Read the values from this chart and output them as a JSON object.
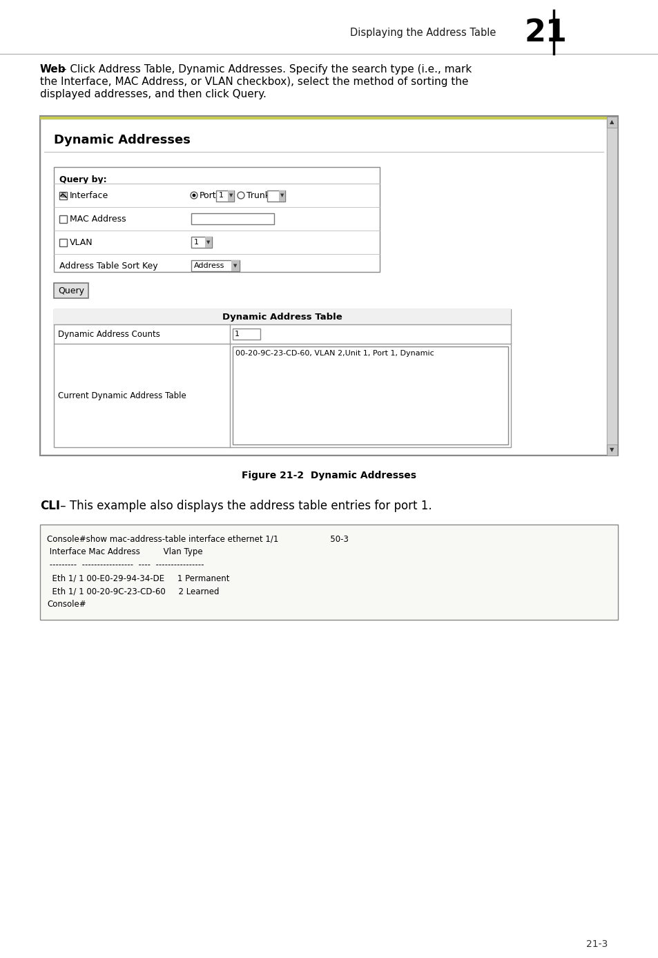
{
  "page_header_text": "Displaying the Address Table",
  "page_number": "21",
  "page_footer": "21-3",
  "bg_color": "#ffffff",
  "intro_bold": "Web",
  "intro_rest": " – Click Address Table, Dynamic Addresses. Specify the search type (i.e., mark the Interface, MAC Address, or VLAN checkbox), select the method of sorting the displayed addresses, and then click Query.",
  "figure_title": "Dynamic Addresses",
  "figure_caption": "Figure 21-2  Dynamic Addresses",
  "query_by_label": "Query by:",
  "query_button": "Query",
  "table_header": "Dynamic Address Table",
  "table_row1_left": "Dynamic Address Counts",
  "table_row1_right": "1",
  "table_row2_left": "Current Dynamic Address Table",
  "table_row2_right": "00-20-9C-23-CD-60, VLAN 2,Unit 1, Port 1, Dynamic",
  "cli_bold": "CLI",
  "cli_text": " – This example also displays the address table entries for port 1.",
  "cli_lines": [
    "Console#show mac-address-table interface ethernet 1/1                    50-3",
    " Interface Mac Address         Vlan Type",
    " ---------  -----------------  ----  ----------------",
    "  Eth 1/ 1 00-E0-29-94-34-DE     1 Permanent",
    "  Eth 1/ 1 00-20-9C-23-CD-60     2 Learned",
    "Console#"
  ]
}
